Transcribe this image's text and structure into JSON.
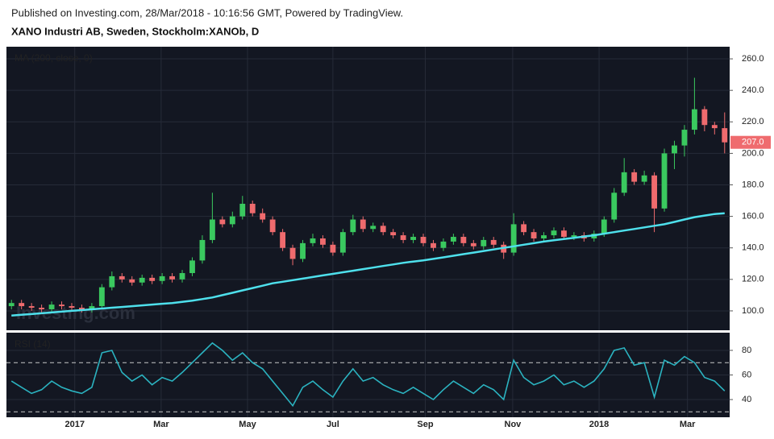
{
  "header": {
    "published": "Published on Investing.com, 28/Mar/2018 - 10:16:56 GMT, Powered by TradingView.",
    "symbol": "XANO Industri AB, Sweden, Stockholm:XANOb, D"
  },
  "chart_data": [
    {
      "type": "candlestick",
      "watermark": "Investing.com",
      "up_color": "#3ac95f",
      "down_color": "#ef6b6e",
      "xlim": [
        -0.5,
        71.5
      ],
      "ylim": [
        87.7,
        267.7
      ],
      "yticks": [
        {
          "value": 100,
          "label": "100.0"
        },
        {
          "value": 120,
          "label": "120.0"
        },
        {
          "value": 140,
          "label": "140.0"
        },
        {
          "value": 160,
          "label": "160.0"
        },
        {
          "value": 180,
          "label": "180.0"
        },
        {
          "value": 200,
          "label": "200.0"
        },
        {
          "value": 220,
          "label": "220.0"
        },
        {
          "value": 240,
          "label": "240.0"
        },
        {
          "value": 260,
          "label": "260.0"
        }
      ],
      "open": [
        103,
        105,
        103,
        102,
        101,
        104,
        103,
        102,
        101,
        103,
        115,
        122,
        120,
        118,
        121,
        119,
        122,
        120,
        124,
        132,
        145,
        158,
        155,
        160,
        168,
        162,
        158,
        150,
        140,
        133,
        143,
        146,
        142,
        137,
        150,
        158,
        152,
        154,
        150,
        148,
        145,
        147,
        143,
        140,
        144,
        147,
        143,
        141,
        145,
        142,
        137,
        155,
        150,
        146,
        148,
        151,
        147,
        148,
        146,
        149,
        158,
        175,
        188,
        182,
        186,
        165,
        200,
        205,
        215,
        228,
        218,
        216
      ],
      "high": [
        107,
        107,
        105,
        104,
        106,
        106,
        105,
        104,
        105,
        117,
        125,
        124,
        122,
        123,
        123,
        124,
        124,
        126,
        134,
        148,
        175,
        160,
        163,
        173,
        170,
        165,
        160,
        152,
        142,
        145,
        149,
        148,
        144,
        152,
        161,
        160,
        156,
        156,
        152,
        150,
        149,
        149,
        145,
        146,
        149,
        149,
        145,
        147,
        147,
        144,
        162,
        157,
        152,
        150,
        153,
        153,
        150,
        150,
        151,
        160,
        178,
        197,
        190,
        189,
        188,
        203,
        208,
        218,
        248,
        230,
        220,
        226
      ],
      "low": [
        101,
        101,
        100,
        99,
        99,
        101,
        100,
        99,
        99,
        101,
        113,
        118,
        116,
        116,
        117,
        117,
        118,
        118,
        122,
        130,
        143,
        153,
        153,
        158,
        160,
        156,
        148,
        138,
        129,
        131,
        141,
        140,
        135,
        135,
        148,
        150,
        150,
        148,
        146,
        143,
        143,
        141,
        138,
        138,
        142,
        141,
        139,
        139,
        140,
        133,
        135,
        148,
        144,
        144,
        146,
        145,
        145,
        144,
        144,
        147,
        156,
        173,
        180,
        180,
        150,
        163,
        190,
        198,
        212,
        214,
        212,
        200
      ],
      "close": [
        105,
        103,
        102,
        101,
        104,
        103,
        102,
        101,
        103,
        115,
        122,
        120,
        118,
        121,
        119,
        122,
        120,
        124,
        132,
        145,
        158,
        155,
        160,
        168,
        162,
        158,
        150,
        140,
        133,
        143,
        146,
        142,
        137,
        150,
        158,
        152,
        154,
        150,
        148,
        145,
        147,
        143,
        140,
        144,
        147,
        143,
        141,
        145,
        142,
        137,
        155,
        150,
        146,
        148,
        151,
        147,
        148,
        146,
        149,
        158,
        175,
        188,
        182,
        186,
        165,
        200,
        205,
        215,
        228,
        218,
        216,
        207
      ],
      "last_close_label": "207.0",
      "series": [
        {
          "name": "MA (200, close, 0)",
          "color": "#4ee0ec",
          "values": [
            97,
            97.5,
            98,
            98.5,
            99,
            99.5,
            100,
            100.5,
            101,
            101.5,
            102,
            102.5,
            103,
            103.5,
            104,
            104.5,
            105,
            105.7,
            106.5,
            107.5,
            108.5,
            110,
            111.5,
            113,
            114.5,
            116,
            117.5,
            118.5,
            119.5,
            120.5,
            121.5,
            122.5,
            123.5,
            124.5,
            125.5,
            126.5,
            127.5,
            128.5,
            129.5,
            130.5,
            131.3,
            132.1,
            133,
            134,
            135,
            136,
            137,
            138,
            139,
            140,
            141,
            142,
            143,
            144,
            144.8,
            145.6,
            146.4,
            147.2,
            148,
            149,
            150,
            151,
            152,
            153,
            154,
            155,
            156.5,
            158,
            159.5,
            160.5,
            161.5,
            162
          ]
        }
      ]
    },
    {
      "type": "line",
      "xlim": [
        -0.5,
        71.5
      ],
      "ylim": [
        25.6,
        94.4
      ],
      "yticks": [
        40,
        60,
        80
      ],
      "levels": [
        70,
        30
      ],
      "xticks": [
        {
          "value": 6.3,
          "label": "2017"
        },
        {
          "value": 14.9,
          "label": "Mar"
        },
        {
          "value": 23.5,
          "label": "May"
        },
        {
          "value": 32.0,
          "label": "Jul"
        },
        {
          "value": 41.2,
          "label": "Sep"
        },
        {
          "value": 49.9,
          "label": "Nov"
        },
        {
          "value": 58.5,
          "label": "2018"
        },
        {
          "value": 67.3,
          "label": "Mar"
        }
      ],
      "series": [
        {
          "name": "RSI (14)",
          "color": "#2bb3c0",
          "values": [
            55,
            50,
            45,
            48,
            55,
            50,
            47,
            45,
            50,
            78,
            80,
            62,
            55,
            60,
            52,
            58,
            55,
            62,
            70,
            78,
            86,
            80,
            72,
            78,
            70,
            65,
            55,
            45,
            35,
            50,
            55,
            48,
            42,
            55,
            65,
            55,
            58,
            52,
            48,
            45,
            50,
            45,
            40,
            48,
            55,
            50,
            45,
            52,
            48,
            40,
            72,
            58,
            52,
            55,
            60,
            52,
            55,
            50,
            55,
            65,
            80,
            82,
            68,
            70,
            42,
            72,
            68,
            75,
            70,
            58,
            55,
            47
          ]
        }
      ]
    }
  ]
}
